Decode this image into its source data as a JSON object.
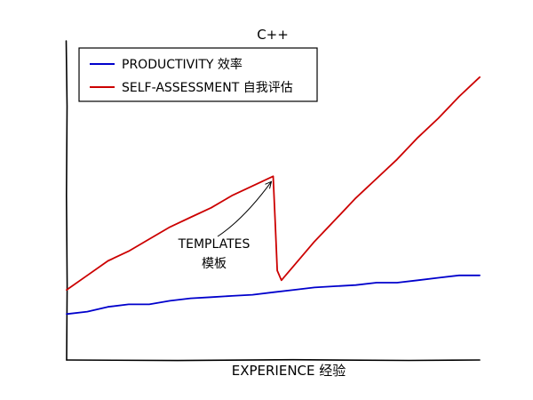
{
  "chart_data": {
    "type": "line",
    "title": "C++",
    "xlabel": "EXPERIENCE 经验",
    "ylabel": "",
    "grid": false,
    "legend_position": "top-left",
    "series": [
      {
        "name": "PRODUCTIVITY 效率",
        "color": "#0000cc",
        "x": [
          0,
          5,
          10,
          15,
          20,
          25,
          30,
          35,
          40,
          45,
          50,
          55,
          60,
          65,
          70,
          75,
          80,
          85,
          90,
          95,
          100
        ],
        "y": [
          0.2,
          0.3,
          0.5,
          0.6,
          0.6,
          0.75,
          0.85,
          0.9,
          0.95,
          1.0,
          1.1,
          1.2,
          1.3,
          1.35,
          1.4,
          1.5,
          1.5,
          1.6,
          1.7,
          1.8,
          1.8
        ]
      },
      {
        "name": "SELF-ASSESSMENT 自我评估",
        "color": "#cc0000",
        "x": [
          0,
          5,
          10,
          15,
          20,
          25,
          30,
          35,
          40,
          45,
          50,
          50.5,
          51,
          52,
          55,
          60,
          65,
          70,
          75,
          80,
          85,
          90,
          95,
          100
        ],
        "y": [
          1.2,
          1.8,
          2.4,
          2.8,
          3.3,
          3.8,
          4.2,
          4.6,
          5.1,
          5.5,
          5.9,
          4.0,
          2.0,
          1.6,
          2.2,
          3.2,
          4.1,
          5.0,
          5.8,
          6.6,
          7.5,
          8.3,
          9.2,
          10.0
        ]
      }
    ],
    "xlim": [
      0,
      100
    ],
    "ylim": [
      -1.7,
      11.5
    ],
    "annotations": [
      {
        "text_line1": "TEMPLATES",
        "text_line2": "模板",
        "target": [
          50,
          5.9
        ]
      }
    ]
  }
}
